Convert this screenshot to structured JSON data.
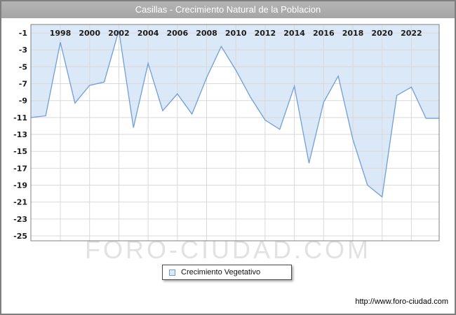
{
  "page": {
    "title": "Casillas - Crecimiento Natural de la Poblacion",
    "watermark": "FORO-CIUDAD.COM",
    "footer_url": "http://www.foro-ciudad.com"
  },
  "legend": {
    "label": "Crecimiento Vegetativo"
  },
  "colors": {
    "line": "#6f9fd8",
    "fill": "#dbe8f7",
    "grid": "#d9d9d9",
    "plot_border": "#808080",
    "title_bar": "#a5a5a5",
    "watermark": "#e2e2e2",
    "label_text": "#1c1c1c"
  },
  "chart_data": {
    "type": "area",
    "title": "Casillas - Crecimiento Natural de la Poblacion",
    "series_name": "Crecimiento Vegetativo",
    "x": [
      1996,
      1997,
      1998,
      1999,
      2000,
      2001,
      2002,
      2003,
      2004,
      2005,
      2006,
      2007,
      2008,
      2009,
      2010,
      2011,
      2012,
      2013,
      2014,
      2015,
      2016,
      2017,
      2018,
      2019,
      2020,
      2021,
      2022,
      2023
    ],
    "values": [
      -11,
      -10.8,
      -2.1,
      -9.3,
      -7.2,
      -6.8,
      -0.7,
      -12.2,
      -4.6,
      -10.2,
      -8.2,
      -10.6,
      -6.3,
      -2.6,
      -5.4,
      -8.6,
      -11.3,
      -12.4,
      -7.3,
      -16.4,
      -9.2,
      -6.1,
      -13.6,
      -19.0,
      -20.4,
      -8.4,
      -7.4,
      -11.1
    ],
    "x_ticks": [
      1998,
      2000,
      2002,
      2004,
      2006,
      2008,
      2010,
      2012,
      2014,
      2016,
      2018,
      2020,
      2022
    ],
    "y_ticks": [
      -1,
      -3,
      -5,
      -7,
      -9,
      -11,
      -13,
      -15,
      -17,
      -19,
      -21,
      -23,
      -25
    ],
    "ylim": [
      -25.6,
      0
    ],
    "grid": true,
    "legend_position": "bottom"
  }
}
